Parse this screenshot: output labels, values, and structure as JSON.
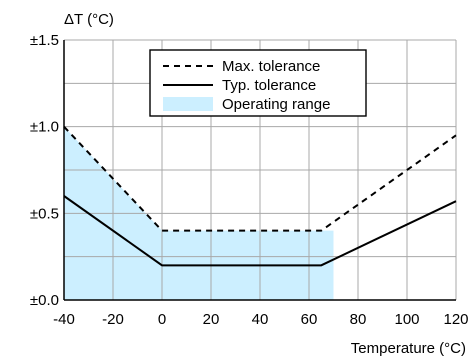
{
  "chart_data": {
    "type": "line",
    "xlabel": "Temperature (°C)",
    "ylabel": "ΔT (°C)",
    "xlim": [
      -40,
      120
    ],
    "ylim": [
      0,
      1.5
    ],
    "x_ticks": [
      -40,
      -20,
      0,
      20,
      40,
      60,
      80,
      100,
      120
    ],
    "y_ticks": [
      0.0,
      0.5,
      1.0,
      1.5
    ],
    "y_tick_labels": [
      "±0.0",
      "±0.5",
      "±1.0",
      "±1.5"
    ],
    "grid": true,
    "legend_position": "top-center",
    "series": [
      {
        "name": "Max. tolerance",
        "style": "dashed",
        "color": "#000000",
        "points": [
          [
            -40,
            1.0
          ],
          [
            0,
            0.4
          ],
          [
            65,
            0.4
          ],
          [
            120,
            0.95
          ]
        ]
      },
      {
        "name": "Typ. tolerance",
        "style": "solid",
        "color": "#000000",
        "points": [
          [
            -40,
            0.6
          ],
          [
            0,
            0.2
          ],
          [
            65,
            0.2
          ],
          [
            120,
            0.57
          ]
        ]
      }
    ],
    "shaded_region": {
      "name": "Operating range",
      "color": "#ccefff",
      "x_range": [
        -40,
        70
      ],
      "upper_points": [
        [
          -40,
          1.0
        ],
        [
          0,
          0.4
        ],
        [
          70,
          0.4
        ]
      ]
    }
  }
}
